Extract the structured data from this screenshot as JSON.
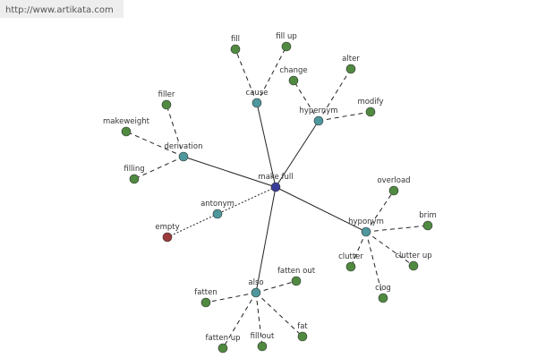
{
  "watermark": "http://www.artikata.com",
  "nodes": [
    {
      "label": "make full"
    },
    {
      "label": "cause"
    },
    {
      "label": "hypernym"
    },
    {
      "label": "derivation"
    },
    {
      "label": "antonym"
    },
    {
      "label": "hyponym"
    },
    {
      "label": "also"
    },
    {
      "label": "fill"
    },
    {
      "label": "fill up"
    },
    {
      "label": "change"
    },
    {
      "label": "alter"
    },
    {
      "label": "modify"
    },
    {
      "label": "filler"
    },
    {
      "label": "makeweight"
    },
    {
      "label": "filling"
    },
    {
      "label": "empty"
    },
    {
      "label": "overload"
    },
    {
      "label": "brim"
    },
    {
      "label": "clutter"
    },
    {
      "label": "clutter up"
    },
    {
      "label": "clog"
    },
    {
      "label": "fatten out"
    },
    {
      "label": "fatten"
    },
    {
      "label": "fatten up"
    },
    {
      "label": "fill out"
    },
    {
      "label": "fat"
    }
  ]
}
